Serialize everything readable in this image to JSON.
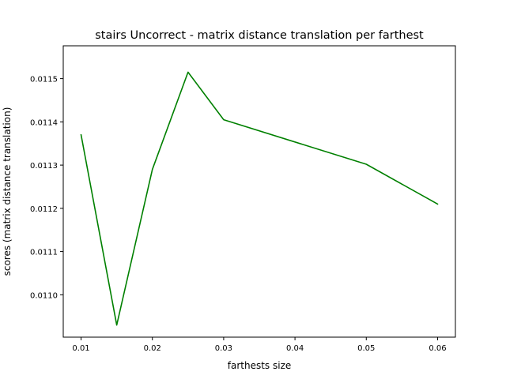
{
  "chart_data": {
    "type": "line",
    "title": "stairs Uncorrect - matrix distance translation per farthest",
    "xlabel": "farthests size",
    "ylabel": "scores (matrix distance translation)",
    "x": [
      0.01,
      0.015,
      0.02,
      0.025,
      0.03,
      0.05,
      0.06
    ],
    "series": [
      {
        "color": "#008000",
        "values": [
          0.01137,
          0.01093,
          0.01129,
          0.011515,
          0.011405,
          0.011302,
          0.01121
        ]
      }
    ],
    "xlim": [
      0.0075,
      0.0625
    ],
    "ylim": [
      0.010902,
      0.011576
    ],
    "xticks": [
      0.01,
      0.02,
      0.03,
      0.04,
      0.05,
      0.06
    ],
    "xtick_labels": [
      "0.01",
      "0.02",
      "0.03",
      "0.04",
      "0.05",
      "0.06"
    ],
    "yticks": [
      0.011,
      0.0111,
      0.0112,
      0.0113,
      0.0114,
      0.0115
    ],
    "ytick_labels": [
      "0.0110",
      "0.0111",
      "0.0112",
      "0.0113",
      "0.0114",
      "0.0115"
    ],
    "grid": false,
    "legend": "none"
  }
}
